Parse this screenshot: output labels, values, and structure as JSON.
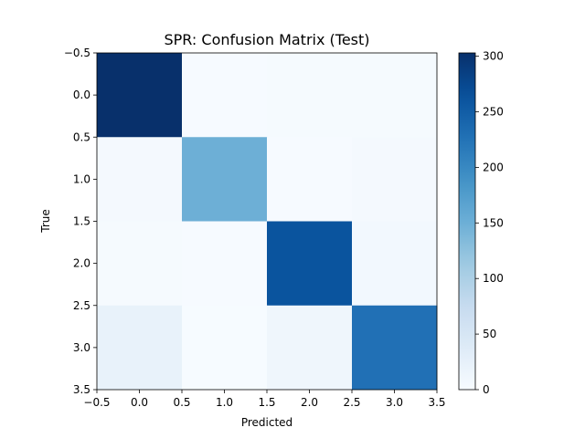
{
  "chart_data": {
    "type": "heatmap",
    "title": "SPR: Confusion Matrix (Test)",
    "xlabel": "Predicted",
    "ylabel": "True",
    "colormap": "Blues",
    "matrix": [
      [
        303,
        2,
        3,
        3
      ],
      [
        5,
        150,
        2,
        4
      ],
      [
        3,
        2,
        262,
        7
      ],
      [
        22,
        1,
        12,
        228
      ]
    ],
    "xlim": [
      -0.5,
      3.5
    ],
    "ylim": [
      3.5,
      -0.5
    ],
    "xticks": [
      "-0.5",
      "0.0",
      "0.5",
      "1.0",
      "1.5",
      "2.0",
      "2.5",
      "3.0",
      "3.5"
    ],
    "yticks": [
      "-0.5",
      "0.0",
      "0.5",
      "1.0",
      "1.5",
      "2.0",
      "2.5",
      "3.0",
      "3.5"
    ],
    "colorbar": {
      "min": 0,
      "max": 303,
      "ticks": [
        "0",
        "50",
        "100",
        "150",
        "200",
        "250",
        "300"
      ]
    },
    "grid": false,
    "legend": "none"
  }
}
